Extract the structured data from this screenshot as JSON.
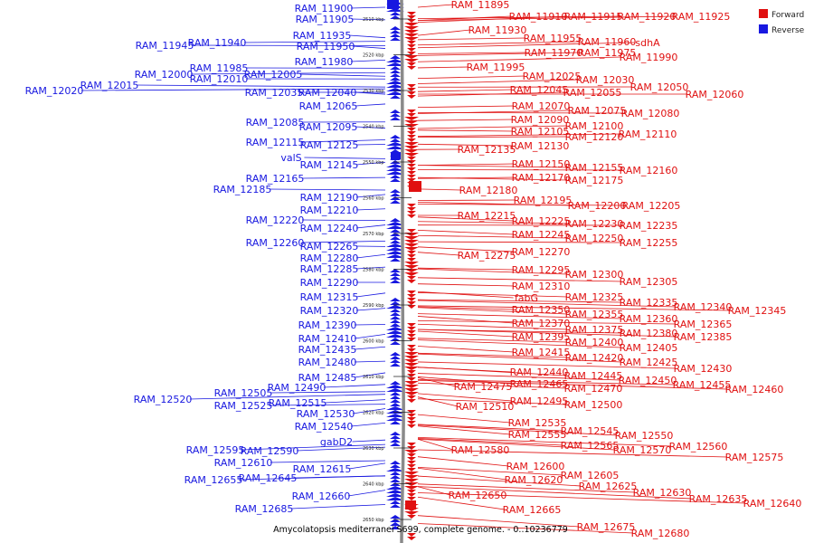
{
  "caption": "Amycolatopsis mediterranei S699, complete genome. - 0..10236779",
  "colors": {
    "forward": "#e01010",
    "reverse": "#1818e0",
    "axis": "#888888"
  },
  "legend": [
    {
      "label": "Forward",
      "color": "#e01010"
    },
    {
      "label": "Reverse",
      "color": "#1818e0"
    }
  ],
  "ticks": [
    "2510 kbp",
    "2520 kbp",
    "2530 kbp",
    "2540 kbp",
    "2550 kbp",
    "2560 kbp",
    "2570 kbp",
    "2580 kbp",
    "2590 kbp",
    "2600 kbp",
    "2610 kbp",
    "2620 kbp",
    "2630 kbp",
    "2640 kbp",
    "2650 kbp"
  ],
  "reverse_genes": [
    "RAM_11900",
    "RAM_11905",
    "RAM_11935",
    "RAM_11940",
    "RAM_11945",
    "RAM_11950",
    "RAM_11980",
    "RAM_11985",
    "RAM_12005",
    "RAM_12000",
    "RAM_12010",
    "RAM_12015",
    "RAM_12020",
    "RAM_12035",
    "RAM_12040",
    "RAM_12065",
    "RAM_12085",
    "RAM_12095",
    "RAM_12115",
    "RAM_12125",
    "valS",
    "RAM_12145",
    "RAM_12165",
    "RAM_12185",
    "RAM_12190",
    "RAM_12210",
    "RAM_12220",
    "RAM_12240",
    "RAM_12260",
    "RAM_12265",
    "RAM_12280",
    "RAM_12285",
    "RAM_12290",
    "RAM_12315",
    "RAM_12320",
    "RAM_12390",
    "RAM_12410",
    "RAM_12435",
    "RAM_12480",
    "RAM_12485",
    "RAM_12490",
    "RAM_12505",
    "RAM_12520",
    "RAM_12515",
    "RAM_12525",
    "RAM_12530",
    "RAM_12540",
    "gabD2",
    "RAM_12595",
    "RAM_12590",
    "RAM_12610",
    "RAM_12615",
    "RAM_12655",
    "RAM_12645",
    "RAM_12660",
    "RAM_12685"
  ],
  "forward_genes": [
    "RAM_11895",
    "RAM_11910",
    "RAM_11915",
    "RAM_11920",
    "RAM_11925",
    "RAM_11930",
    "RAM_11955",
    "RAM_11960",
    "sdhA",
    "RAM_11970",
    "RAM_11975",
    "RAM_11990",
    "RAM_11995",
    "RAM_12025",
    "RAM_12030",
    "RAM_12050",
    "RAM_12045",
    "RAM_12055",
    "RAM_12060",
    "RAM_12070",
    "RAM_12075",
    "RAM_12080",
    "RAM_12090",
    "RAM_12100",
    "RAM_12105",
    "RAM_12120",
    "RAM_12110",
    "RAM_12130",
    "RAM_12135",
    "RAM_12150",
    "RAM_12155",
    "RAM_12160",
    "RAM_12170",
    "RAM_12175",
    "RAM_12180",
    "RAM_12195",
    "RAM_12200",
    "RAM_12205",
    "RAM_12215",
    "RAM_12225",
    "RAM_12230",
    "RAM_12235",
    "RAM_12245",
    "RAM_12250",
    "RAM_12255",
    "RAM_12270",
    "RAM_12275",
    "RAM_12295",
    "RAM_12300",
    "RAM_12305",
    "RAM_12310",
    "fabG",
    "RAM_12325",
    "RAM_12335",
    "RAM_12340",
    "RAM_12345",
    "RAM_12350",
    "RAM_12355",
    "RAM_12360",
    "RAM_12365",
    "RAM_12370",
    "RAM_12375",
    "RAM_12380",
    "RAM_12385",
    "RAM_12395",
    "RAM_12400",
    "RAM_12405",
    "RAM_12415",
    "RAM_12420",
    "RAM_12425",
    "RAM_12430",
    "RAM_12440",
    "RAM_12445",
    "RAM_12450",
    "RAM_12455",
    "RAM_12460",
    "RAM_12465",
    "RAM_12470",
    "RAM_12475",
    "RAM_12495",
    "RAM_12500",
    "RAM_12510",
    "RAM_12535",
    "RAM_12545",
    "RAM_12550",
    "RAM_12555",
    "RAM_12565",
    "RAM_12570",
    "RAM_12560",
    "RAM_12575",
    "RAM_12580",
    "RAM_12600",
    "RAM_12605",
    "RAM_12620",
    "RAM_12625",
    "RAM_12630",
    "RAM_12635",
    "RAM_12640",
    "RAM_12650",
    "RAM_12665",
    "RAM_12675",
    "RAM_12680"
  ]
}
